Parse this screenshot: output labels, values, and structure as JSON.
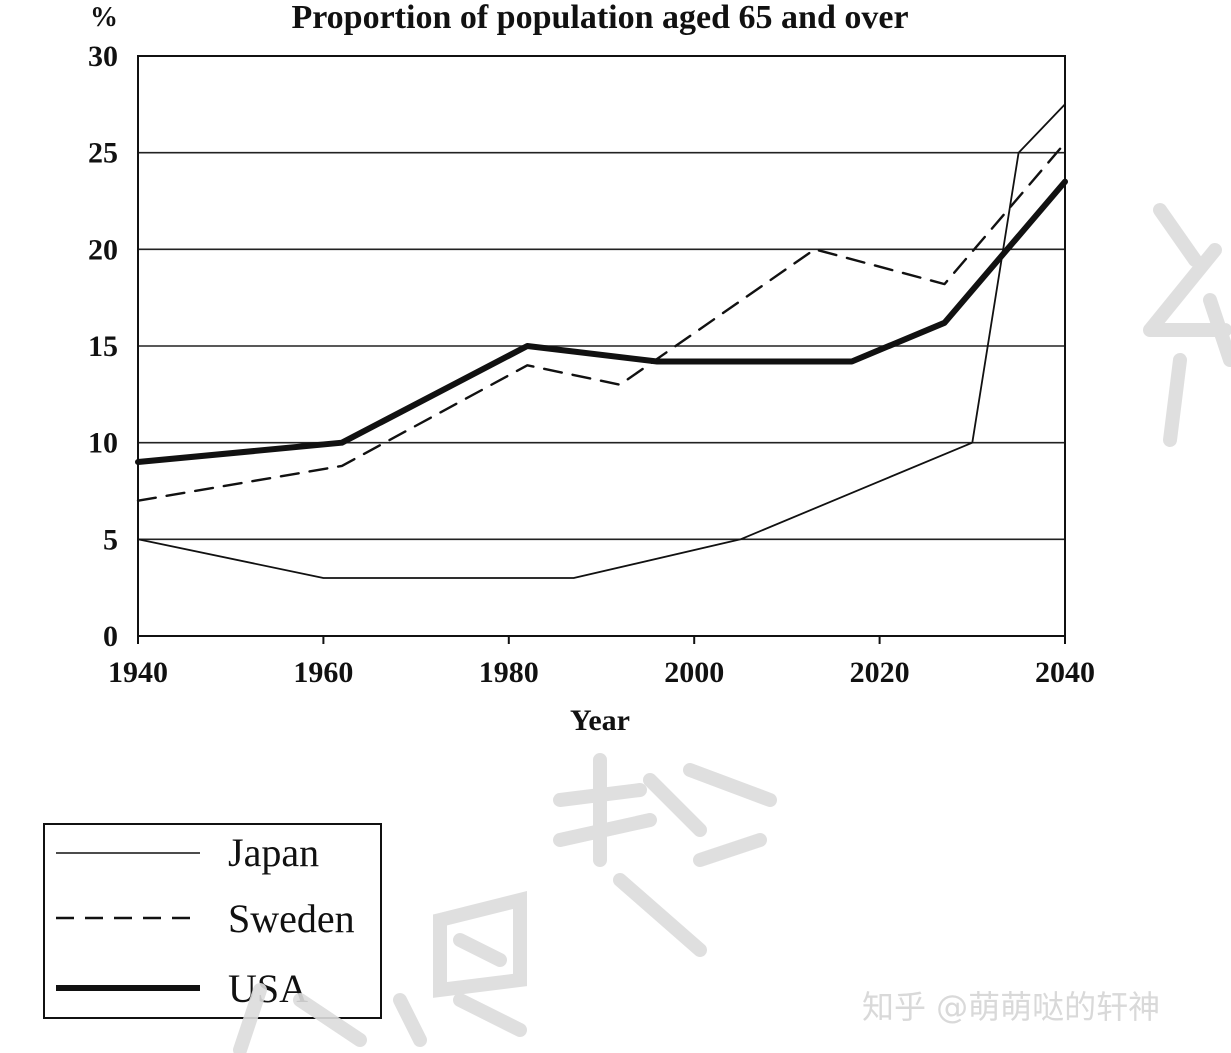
{
  "chart_data": {
    "type": "line",
    "title": "Proportion of population aged 65 and over",
    "y_unit_label": "%",
    "xlabel": "Year",
    "ylabel": "",
    "xlim": [
      1940,
      2040
    ],
    "ylim": [
      0,
      30
    ],
    "x_ticks": [
      "1940",
      "1960",
      "1980",
      "2000",
      "2020",
      "2040"
    ],
    "y_ticks": [
      "0",
      "5",
      "10",
      "15",
      "20",
      "25",
      "30"
    ],
    "grid": "horizontal",
    "legend_position": "bottom-left",
    "series": [
      {
        "name": "Japan",
        "style": "thin-solid",
        "points": [
          [
            1940,
            5
          ],
          [
            1960,
            3
          ],
          [
            1970,
            3
          ],
          [
            1987,
            3
          ],
          [
            2005,
            5
          ],
          [
            2020,
            8
          ],
          [
            2030,
            10
          ],
          [
            2035,
            25
          ],
          [
            2040,
            27.5
          ]
        ]
      },
      {
        "name": "Sweden",
        "style": "dashed",
        "points": [
          [
            1940,
            7
          ],
          [
            1962,
            8.8
          ],
          [
            1982,
            14
          ],
          [
            1992,
            13
          ],
          [
            2013,
            20
          ],
          [
            2027,
            18.2
          ],
          [
            2040,
            25.5
          ]
        ]
      },
      {
        "name": "USA",
        "style": "thick-solid",
        "points": [
          [
            1940,
            9
          ],
          [
            1962,
            10
          ],
          [
            1982,
            15
          ],
          [
            1996,
            14.2
          ],
          [
            2017,
            14.2
          ],
          [
            2027,
            16.2
          ],
          [
            2040,
            23.5
          ]
        ]
      }
    ]
  },
  "legend": {
    "items": [
      {
        "label": "Japan",
        "style": "thin-solid"
      },
      {
        "label": "Sweden",
        "style": "dashed"
      },
      {
        "label": "USA",
        "style": "thick-solid"
      }
    ]
  },
  "watermark": {
    "credit": "知乎 @萌萌哒的轩神"
  },
  "colors": {
    "line": "#111111",
    "grid": "#222222",
    "watermark": "#d9d9d9"
  }
}
